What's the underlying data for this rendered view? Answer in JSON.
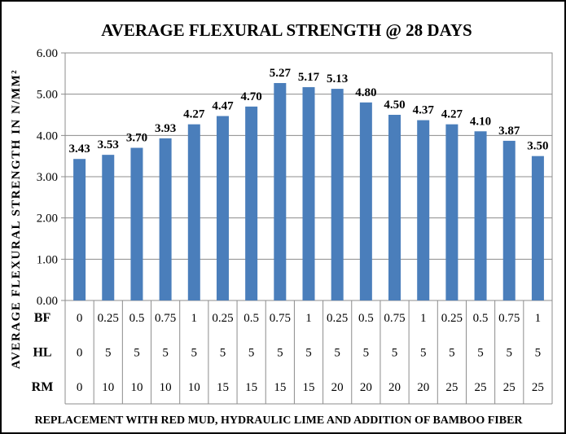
{
  "chart_data": {
    "type": "bar",
    "title": "AVERAGE  FLEXURAL STRENGTH @ 28 DAYS",
    "ylabel": "AVERAGE FLEXURAL STRENGTH IN N/MM²",
    "xlabel": "REPLACEMENT WITH RED MUD, HYDRAULIC LIME AND ADDITION OF BAMBOO FIBER",
    "ylim": [
      0,
      6
    ],
    "yticks": [
      "0.00",
      "1.00",
      "2.00",
      "3.00",
      "4.00",
      "5.00",
      "6.00"
    ],
    "grid": true,
    "bar_color": "#4a7ebb",
    "values": [
      3.43,
      3.53,
      3.7,
      3.93,
      4.27,
      4.47,
      4.7,
      5.27,
      5.17,
      5.13,
      4.8,
      4.5,
      4.37,
      4.27,
      4.1,
      3.87,
      3.5
    ],
    "value_labels": [
      "3.43",
      "3.53",
      "3.70",
      "3.93",
      "4.27",
      "4.47",
      "4.70",
      "5.27",
      "5.17",
      "5.13",
      "4.80",
      "4.50",
      "4.37",
      "4.27",
      "4.10",
      "3.87",
      "3.50"
    ],
    "table_rows": [
      {
        "name": "BF",
        "cells": [
          "0",
          "0.25",
          "0.5",
          "0.75",
          "1",
          "0.25",
          "0.5",
          "0.75",
          "1",
          "0.25",
          "0.5",
          "0.75",
          "1",
          "0.25",
          "0.5",
          "0.75",
          "1"
        ]
      },
      {
        "name": "HL",
        "cells": [
          "0",
          "5",
          "5",
          "5",
          "5",
          "5",
          "5",
          "5",
          "5",
          "5",
          "5",
          "5",
          "5",
          "5",
          "5",
          "5",
          "5"
        ]
      },
      {
        "name": "RM",
        "cells": [
          "0",
          "10",
          "10",
          "10",
          "10",
          "15",
          "15",
          "15",
          "15",
          "20",
          "20",
          "20",
          "20",
          "25",
          "25",
          "25",
          "25"
        ]
      }
    ]
  }
}
